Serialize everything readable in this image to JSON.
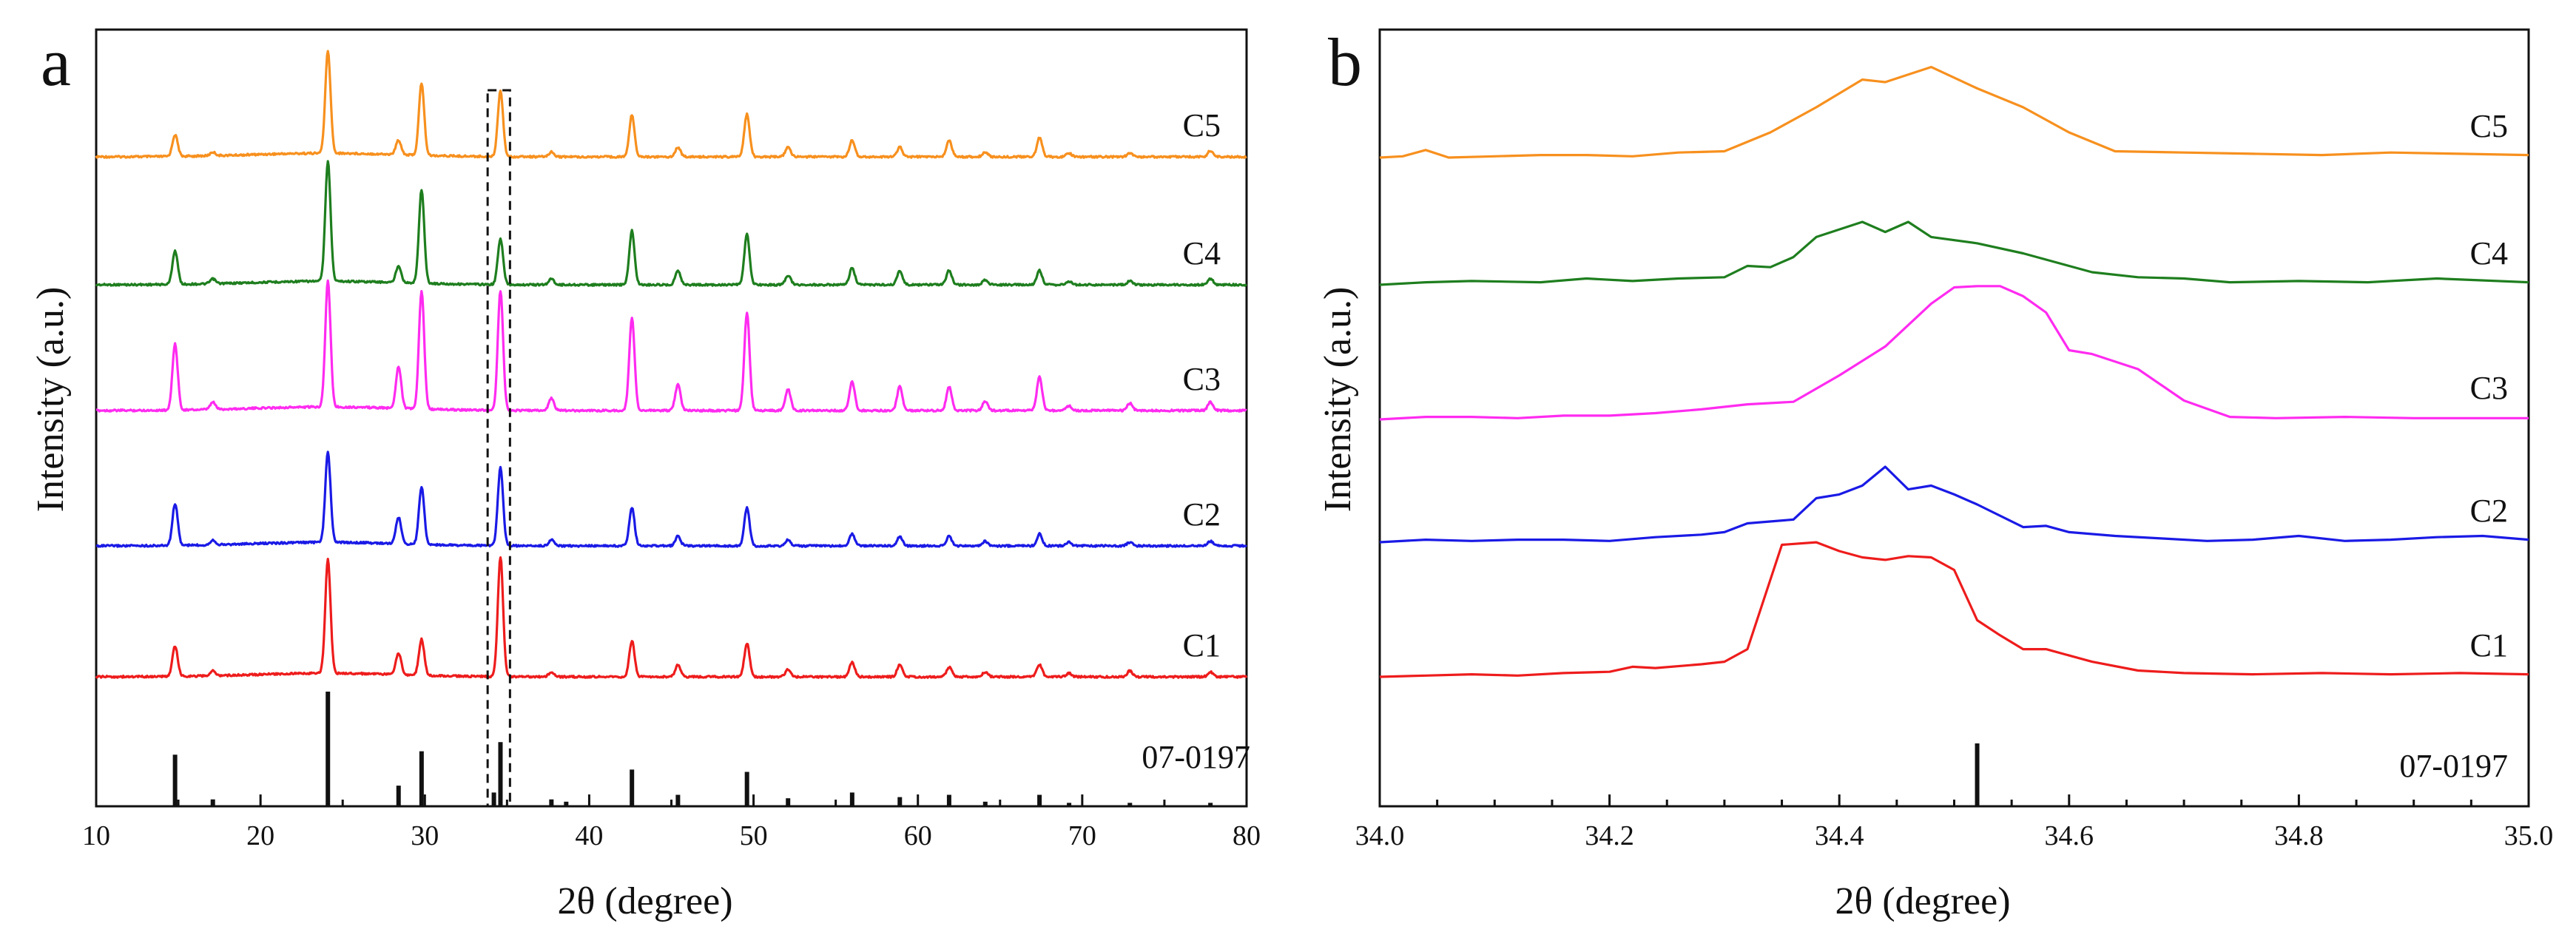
{
  "chart_data": [
    {
      "type": "line",
      "panel_label": "a",
      "xlabel": "2θ (degree)",
      "ylabel": "Intensity (a.u.)",
      "xlim": [
        10,
        80
      ],
      "xticks": [
        10,
        20,
        30,
        40,
        50,
        60,
        70,
        80
      ],
      "xtick_labels": [
        "10",
        "20",
        "30",
        "40",
        "50",
        "60",
        "70",
        "80"
      ],
      "grid": false,
      "dashed_box_x_range": [
        34.0,
        35.0
      ],
      "reference": {
        "label": "07-0197",
        "peaks": [
          {
            "x": 14.8,
            "rel": 0.45
          },
          {
            "x": 17.1,
            "rel": 0.06
          },
          {
            "x": 24.1,
            "rel": 1.0
          },
          {
            "x": 28.4,
            "rel": 0.18
          },
          {
            "x": 29.8,
            "rel": 0.48
          },
          {
            "x": 34.2,
            "rel": 0.12
          },
          {
            "x": 34.6,
            "rel": 0.56
          },
          {
            "x": 37.7,
            "rel": 0.06
          },
          {
            "x": 38.6,
            "rel": 0.04
          },
          {
            "x": 42.6,
            "rel": 0.32
          },
          {
            "x": 45.4,
            "rel": 0.1
          },
          {
            "x": 49.6,
            "rel": 0.3
          },
          {
            "x": 52.1,
            "rel": 0.07
          },
          {
            "x": 56.0,
            "rel": 0.12
          },
          {
            "x": 58.9,
            "rel": 0.08
          },
          {
            "x": 61.9,
            "rel": 0.1
          },
          {
            "x": 64.1,
            "rel": 0.04
          },
          {
            "x": 67.4,
            "rel": 0.1
          },
          {
            "x": 69.2,
            "rel": 0.03
          },
          {
            "x": 72.9,
            "rel": 0.03
          },
          {
            "x": 77.8,
            "rel": 0.03
          }
        ]
      },
      "series": [
        {
          "name": "C5",
          "color": "#f7901e",
          "peaks": [
            [
              14.8,
              0.18
            ],
            [
              17.1,
              0.03
            ],
            [
              24.1,
              0.85
            ],
            [
              28.4,
              0.12
            ],
            [
              29.8,
              0.6
            ],
            [
              34.6,
              0.55
            ],
            [
              37.7,
              0.04
            ],
            [
              42.6,
              0.35
            ],
            [
              45.4,
              0.08
            ],
            [
              49.6,
              0.36
            ],
            [
              52.1,
              0.08
            ],
            [
              56.0,
              0.14
            ],
            [
              58.9,
              0.08
            ],
            [
              61.9,
              0.14
            ],
            [
              64.1,
              0.04
            ],
            [
              67.4,
              0.16
            ],
            [
              69.2,
              0.03
            ],
            [
              72.9,
              0.03
            ],
            [
              77.8,
              0.05
            ]
          ]
        },
        {
          "name": "C4",
          "color": "#1e7e1e",
          "peaks": [
            [
              14.8,
              0.28
            ],
            [
              17.1,
              0.04
            ],
            [
              24.1,
              1.0
            ],
            [
              28.4,
              0.14
            ],
            [
              29.8,
              0.78
            ],
            [
              34.6,
              0.38
            ],
            [
              37.7,
              0.05
            ],
            [
              42.6,
              0.45
            ],
            [
              45.4,
              0.12
            ],
            [
              49.6,
              0.42
            ],
            [
              52.1,
              0.08
            ],
            [
              56.0,
              0.14
            ],
            [
              58.9,
              0.12
            ],
            [
              61.9,
              0.12
            ],
            [
              64.1,
              0.04
            ],
            [
              67.4,
              0.12
            ],
            [
              69.2,
              0.03
            ],
            [
              72.9,
              0.03
            ],
            [
              77.8,
              0.05
            ]
          ]
        },
        {
          "name": "C3",
          "color": "#ff2bf0",
          "peaks": [
            [
              14.8,
              0.55
            ],
            [
              17.1,
              0.06
            ],
            [
              24.1,
              1.05
            ],
            [
              28.4,
              0.35
            ],
            [
              29.8,
              0.98
            ],
            [
              34.6,
              1.0
            ],
            [
              37.7,
              0.1
            ],
            [
              42.6,
              0.78
            ],
            [
              45.4,
              0.22
            ],
            [
              49.6,
              0.82
            ],
            [
              52.1,
              0.18
            ],
            [
              56.0,
              0.24
            ],
            [
              58.9,
              0.2
            ],
            [
              61.9,
              0.2
            ],
            [
              64.1,
              0.08
            ],
            [
              67.4,
              0.28
            ],
            [
              69.2,
              0.04
            ],
            [
              72.9,
              0.06
            ],
            [
              77.8,
              0.07
            ]
          ]
        },
        {
          "name": "C2",
          "color": "#1a1ae6",
          "peaks": [
            [
              14.8,
              0.35
            ],
            [
              17.1,
              0.04
            ],
            [
              24.1,
              0.75
            ],
            [
              28.4,
              0.22
            ],
            [
              29.8,
              0.48
            ],
            [
              34.6,
              0.65
            ],
            [
              37.7,
              0.05
            ],
            [
              42.6,
              0.32
            ],
            [
              45.4,
              0.08
            ],
            [
              49.6,
              0.32
            ],
            [
              52.1,
              0.05
            ],
            [
              56.0,
              0.1
            ],
            [
              58.9,
              0.08
            ],
            [
              61.9,
              0.08
            ],
            [
              64.1,
              0.04
            ],
            [
              67.4,
              0.1
            ],
            [
              69.2,
              0.03
            ],
            [
              72.9,
              0.03
            ],
            [
              77.8,
              0.04
            ]
          ]
        },
        {
          "name": "C1",
          "color": "#ee1c1c",
          "peaks": [
            [
              14.8,
              0.25
            ],
            [
              17.1,
              0.04
            ],
            [
              24.1,
              0.95
            ],
            [
              28.4,
              0.18
            ],
            [
              29.8,
              0.3
            ],
            [
              34.6,
              1.0
            ],
            [
              37.7,
              0.04
            ],
            [
              42.6,
              0.3
            ],
            [
              45.4,
              0.1
            ],
            [
              49.6,
              0.28
            ],
            [
              52.1,
              0.06
            ],
            [
              56.0,
              0.12
            ],
            [
              58.9,
              0.1
            ],
            [
              61.9,
              0.08
            ],
            [
              64.1,
              0.04
            ],
            [
              67.4,
              0.1
            ],
            [
              69.2,
              0.03
            ],
            [
              72.9,
              0.05
            ],
            [
              77.8,
              0.04
            ]
          ]
        }
      ]
    },
    {
      "type": "line",
      "panel_label": "b",
      "xlabel": "2θ (degree)",
      "ylabel": "Intensity (a.u.)",
      "xlim": [
        34.0,
        35.0
      ],
      "xticks": [
        34.0,
        34.2,
        34.4,
        34.6,
        34.8,
        35.0
      ],
      "xtick_labels": [
        "34.0",
        "34.2",
        "34.4",
        "34.6",
        "34.8",
        "35.0"
      ],
      "grid": false,
      "reference": {
        "label": "07-0197",
        "peaks": [
          {
            "x": 34.52,
            "rel": 1.0
          }
        ]
      },
      "series": [
        {
          "name": "C5",
          "color": "#f7901e",
          "x": [
            34.0,
            34.02,
            34.04,
            34.06,
            34.1,
            34.14,
            34.18,
            34.22,
            34.26,
            34.3,
            34.34,
            34.38,
            34.42,
            34.44,
            34.48,
            34.52,
            34.56,
            34.6,
            34.64,
            34.7,
            34.76,
            34.82,
            34.88,
            34.94,
            35.0
          ],
          "y": [
            0.0,
            0.01,
            0.06,
            0.0,
            0.01,
            0.02,
            0.02,
            0.01,
            0.04,
            0.05,
            0.2,
            0.4,
            0.62,
            0.6,
            0.72,
            0.55,
            0.4,
            0.2,
            0.05,
            0.04,
            0.03,
            0.02,
            0.04,
            0.03,
            0.02
          ]
        },
        {
          "name": "C4",
          "color": "#1e7e1e",
          "x": [
            34.0,
            34.04,
            34.08,
            34.14,
            34.18,
            34.22,
            34.26,
            34.3,
            34.32,
            34.34,
            34.36,
            34.38,
            34.42,
            34.44,
            34.46,
            34.48,
            34.52,
            34.56,
            34.6,
            34.62,
            34.66,
            34.7,
            34.74,
            34.8,
            34.86,
            34.92,
            35.0
          ],
          "y": [
            0.0,
            0.02,
            0.03,
            0.02,
            0.05,
            0.03,
            0.05,
            0.06,
            0.15,
            0.14,
            0.22,
            0.38,
            0.5,
            0.42,
            0.5,
            0.38,
            0.33,
            0.25,
            0.15,
            0.1,
            0.06,
            0.05,
            0.02,
            0.03,
            0.02,
            0.05,
            0.02
          ]
        },
        {
          "name": "C3",
          "color": "#ff2bf0",
          "x": [
            34.0,
            34.04,
            34.08,
            34.12,
            34.16,
            34.2,
            34.24,
            34.28,
            34.32,
            34.36,
            34.4,
            34.44,
            34.48,
            34.5,
            34.52,
            34.54,
            34.56,
            34.58,
            34.6,
            34.62,
            34.66,
            34.7,
            34.74,
            34.78,
            34.84,
            34.9,
            34.95,
            35.0
          ],
          "y": [
            0.0,
            0.02,
            0.02,
            0.01,
            0.03,
            0.03,
            0.05,
            0.08,
            0.12,
            0.14,
            0.35,
            0.58,
            0.92,
            1.05,
            1.06,
            1.06,
            0.98,
            0.85,
            0.55,
            0.52,
            0.4,
            0.15,
            0.02,
            0.01,
            0.02,
            0.01,
            0.01,
            0.01
          ]
        },
        {
          "name": "C2",
          "color": "#1a1ae6",
          "x": [
            34.0,
            34.04,
            34.08,
            34.12,
            34.16,
            34.2,
            34.24,
            34.28,
            34.3,
            34.32,
            34.36,
            34.38,
            34.4,
            34.42,
            34.44,
            34.46,
            34.48,
            34.5,
            34.52,
            34.56,
            34.58,
            34.6,
            34.64,
            34.68,
            34.72,
            34.76,
            34.8,
            34.84,
            34.88,
            34.92,
            34.96,
            35.0
          ],
          "y": [
            0.0,
            0.02,
            0.01,
            0.02,
            0.02,
            0.01,
            0.04,
            0.06,
            0.08,
            0.15,
            0.18,
            0.35,
            0.38,
            0.45,
            0.6,
            0.42,
            0.45,
            0.38,
            0.3,
            0.12,
            0.13,
            0.08,
            0.05,
            0.03,
            0.01,
            0.02,
            0.05,
            0.01,
            0.02,
            0.04,
            0.05,
            0.02
          ]
        },
        {
          "name": "C1",
          "color": "#ee1c1c",
          "x": [
            34.0,
            34.04,
            34.08,
            34.12,
            34.16,
            34.2,
            34.22,
            34.24,
            34.28,
            34.3,
            34.32,
            34.35,
            34.38,
            34.4,
            34.42,
            34.44,
            34.46,
            34.48,
            34.5,
            34.52,
            34.54,
            34.56,
            34.58,
            34.62,
            34.66,
            34.7,
            34.76,
            34.82,
            34.88,
            34.94,
            35.0
          ],
          "y": [
            0.0,
            0.01,
            0.02,
            0.01,
            0.03,
            0.04,
            0.08,
            0.07,
            0.1,
            0.12,
            0.22,
            1.05,
            1.07,
            1.0,
            0.95,
            0.93,
            0.96,
            0.95,
            0.85,
            0.45,
            0.33,
            0.22,
            0.22,
            0.12,
            0.05,
            0.03,
            0.02,
            0.03,
            0.02,
            0.03,
            0.02
          ]
        }
      ]
    }
  ]
}
